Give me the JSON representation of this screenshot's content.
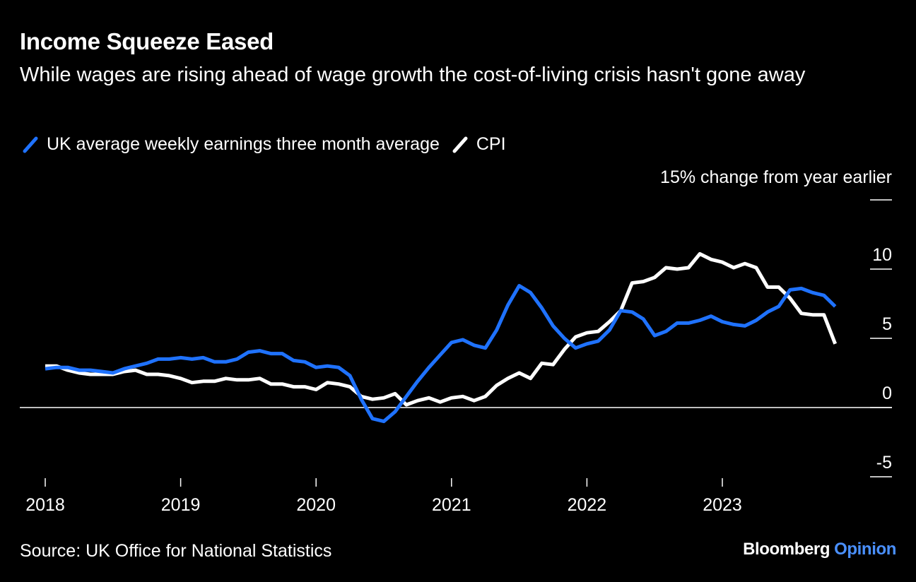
{
  "header": {
    "title": "Income Squeeze Eased",
    "subtitle": "While wages are rising ahead of wage growth the cost-of-living crisis hasn't gone away"
  },
  "legend": {
    "items": [
      {
        "label": "UK average weekly earnings three month average",
        "color": "#1f72ff",
        "icon": "slash-line-icon"
      },
      {
        "label": "CPI",
        "color": "#ffffff",
        "icon": "slash-line-icon"
      }
    ]
  },
  "axis": {
    "unit_label": "15% change from year earlier"
  },
  "footer": {
    "source": "Source: UK Office for National Statistics",
    "logo_main": "Bloomberg",
    "logo_accent": "Opinion"
  },
  "colors": {
    "background": "#000000",
    "earnings": "#1f72ff",
    "cpi": "#ffffff",
    "accent": "#4a90ff"
  },
  "chart_data": {
    "type": "line",
    "title": "Income Squeeze Eased",
    "ylabel": "change from year earlier",
    "ylim": [
      -5,
      15
    ],
    "yticks": [
      -5,
      0,
      5,
      10,
      15
    ],
    "ytick_labels": [
      "-5",
      "0",
      "5",
      "10",
      "15%"
    ],
    "xlim": [
      "2018-01",
      "2023-12"
    ],
    "xticks": [
      "2018",
      "2019",
      "2020",
      "2021",
      "2022",
      "2023"
    ],
    "zero_line": true,
    "grid": false,
    "legend_position": "top-left",
    "series": [
      {
        "name": "UK average weekly earnings three month average",
        "color": "#1f72ff",
        "points": [
          [
            "2018-01",
            2.8
          ],
          [
            "2018-02",
            2.9
          ],
          [
            "2018-03",
            2.9
          ],
          [
            "2018-04",
            2.7
          ],
          [
            "2018-05",
            2.7
          ],
          [
            "2018-06",
            2.6
          ],
          [
            "2018-07",
            2.5
          ],
          [
            "2018-08",
            2.8
          ],
          [
            "2018-09",
            3.0
          ],
          [
            "2018-10",
            3.2
          ],
          [
            "2018-11",
            3.5
          ],
          [
            "2018-12",
            3.5
          ],
          [
            "2019-01",
            3.6
          ],
          [
            "2019-02",
            3.5
          ],
          [
            "2019-03",
            3.6
          ],
          [
            "2019-04",
            3.3
          ],
          [
            "2019-05",
            3.3
          ],
          [
            "2019-06",
            3.5
          ],
          [
            "2019-07",
            4.0
          ],
          [
            "2019-08",
            4.1
          ],
          [
            "2019-09",
            3.9
          ],
          [
            "2019-10",
            3.9
          ],
          [
            "2019-11",
            3.4
          ],
          [
            "2019-12",
            3.3
          ],
          [
            "2020-01",
            2.9
          ],
          [
            "2020-02",
            3.0
          ],
          [
            "2020-03",
            2.9
          ],
          [
            "2020-04",
            2.3
          ],
          [
            "2020-05",
            0.6
          ],
          [
            "2020-06",
            -0.8
          ],
          [
            "2020-07",
            -1.0
          ],
          [
            "2020-08",
            -0.3
          ],
          [
            "2020-09",
            0.8
          ],
          [
            "2020-10",
            1.9
          ],
          [
            "2020-11",
            2.9
          ],
          [
            "2020-12",
            3.8
          ],
          [
            "2021-01",
            4.7
          ],
          [
            "2021-02",
            4.9
          ],
          [
            "2021-03",
            4.5
          ],
          [
            "2021-04",
            4.3
          ],
          [
            "2021-05",
            5.6
          ],
          [
            "2021-06",
            7.4
          ],
          [
            "2021-07",
            8.8
          ],
          [
            "2021-08",
            8.3
          ],
          [
            "2021-09",
            7.2
          ],
          [
            "2021-10",
            5.9
          ],
          [
            "2021-11",
            5.0
          ],
          [
            "2021-12",
            4.3
          ],
          [
            "2022-01",
            4.6
          ],
          [
            "2022-02",
            4.8
          ],
          [
            "2022-03",
            5.6
          ],
          [
            "2022-04",
            7.0
          ],
          [
            "2022-05",
            6.9
          ],
          [
            "2022-06",
            6.4
          ],
          [
            "2022-07",
            5.2
          ],
          [
            "2022-08",
            5.5
          ],
          [
            "2022-09",
            6.1
          ],
          [
            "2022-10",
            6.1
          ],
          [
            "2022-11",
            6.3
          ],
          [
            "2022-12",
            6.6
          ],
          [
            "2023-01",
            6.2
          ],
          [
            "2023-02",
            6.0
          ],
          [
            "2023-03",
            5.9
          ],
          [
            "2023-04",
            6.3
          ],
          [
            "2023-05",
            6.9
          ],
          [
            "2023-06",
            7.3
          ],
          [
            "2023-07",
            8.5
          ],
          [
            "2023-08",
            8.6
          ],
          [
            "2023-09",
            8.3
          ],
          [
            "2023-10",
            8.1
          ],
          [
            "2023-11",
            7.3
          ]
        ]
      },
      {
        "name": "CPI",
        "color": "#ffffff",
        "points": [
          [
            "2018-01",
            3.0
          ],
          [
            "2018-02",
            3.0
          ],
          [
            "2018-03",
            2.7
          ],
          [
            "2018-04",
            2.5
          ],
          [
            "2018-05",
            2.4
          ],
          [
            "2018-06",
            2.4
          ],
          [
            "2018-07",
            2.4
          ],
          [
            "2018-08",
            2.6
          ],
          [
            "2018-09",
            2.7
          ],
          [
            "2018-10",
            2.4
          ],
          [
            "2018-11",
            2.4
          ],
          [
            "2018-12",
            2.3
          ],
          [
            "2019-01",
            2.1
          ],
          [
            "2019-02",
            1.8
          ],
          [
            "2019-03",
            1.9
          ],
          [
            "2019-04",
            1.9
          ],
          [
            "2019-05",
            2.1
          ],
          [
            "2019-06",
            2.0
          ],
          [
            "2019-07",
            2.0
          ],
          [
            "2019-08",
            2.1
          ],
          [
            "2019-09",
            1.7
          ],
          [
            "2019-10",
            1.7
          ],
          [
            "2019-11",
            1.5
          ],
          [
            "2019-12",
            1.5
          ],
          [
            "2020-01",
            1.3
          ],
          [
            "2020-02",
            1.8
          ],
          [
            "2020-03",
            1.7
          ],
          [
            "2020-04",
            1.5
          ],
          [
            "2020-05",
            0.8
          ],
          [
            "2020-06",
            0.6
          ],
          [
            "2020-07",
            0.7
          ],
          [
            "2020-08",
            1.0
          ],
          [
            "2020-09",
            0.2
          ],
          [
            "2020-10",
            0.5
          ],
          [
            "2020-11",
            0.7
          ],
          [
            "2020-12",
            0.4
          ],
          [
            "2021-01",
            0.7
          ],
          [
            "2021-02",
            0.8
          ],
          [
            "2021-03",
            0.5
          ],
          [
            "2021-04",
            0.8
          ],
          [
            "2021-05",
            1.6
          ],
          [
            "2021-06",
            2.1
          ],
          [
            "2021-07",
            2.5
          ],
          [
            "2021-08",
            2.1
          ],
          [
            "2021-09",
            3.2
          ],
          [
            "2021-10",
            3.1
          ],
          [
            "2021-11",
            4.2
          ],
          [
            "2021-12",
            5.1
          ],
          [
            "2022-01",
            5.4
          ],
          [
            "2022-02",
            5.5
          ],
          [
            "2022-03",
            6.2
          ],
          [
            "2022-04",
            7.0
          ],
          [
            "2022-05",
            9.0
          ],
          [
            "2022-06",
            9.1
          ],
          [
            "2022-07",
            9.4
          ],
          [
            "2022-08",
            10.1
          ],
          [
            "2022-09",
            10.0
          ],
          [
            "2022-10",
            10.1
          ],
          [
            "2022-11",
            11.1
          ],
          [
            "2022-12",
            10.7
          ],
          [
            "2023-01",
            10.5
          ],
          [
            "2023-02",
            10.1
          ],
          [
            "2023-03",
            10.4
          ],
          [
            "2023-04",
            10.1
          ],
          [
            "2023-05",
            8.7
          ],
          [
            "2023-06",
            8.7
          ],
          [
            "2023-07",
            7.9
          ],
          [
            "2023-08",
            6.8
          ],
          [
            "2023-09",
            6.7
          ],
          [
            "2023-10",
            6.7
          ],
          [
            "2023-11",
            4.6
          ]
        ]
      }
    ]
  }
}
